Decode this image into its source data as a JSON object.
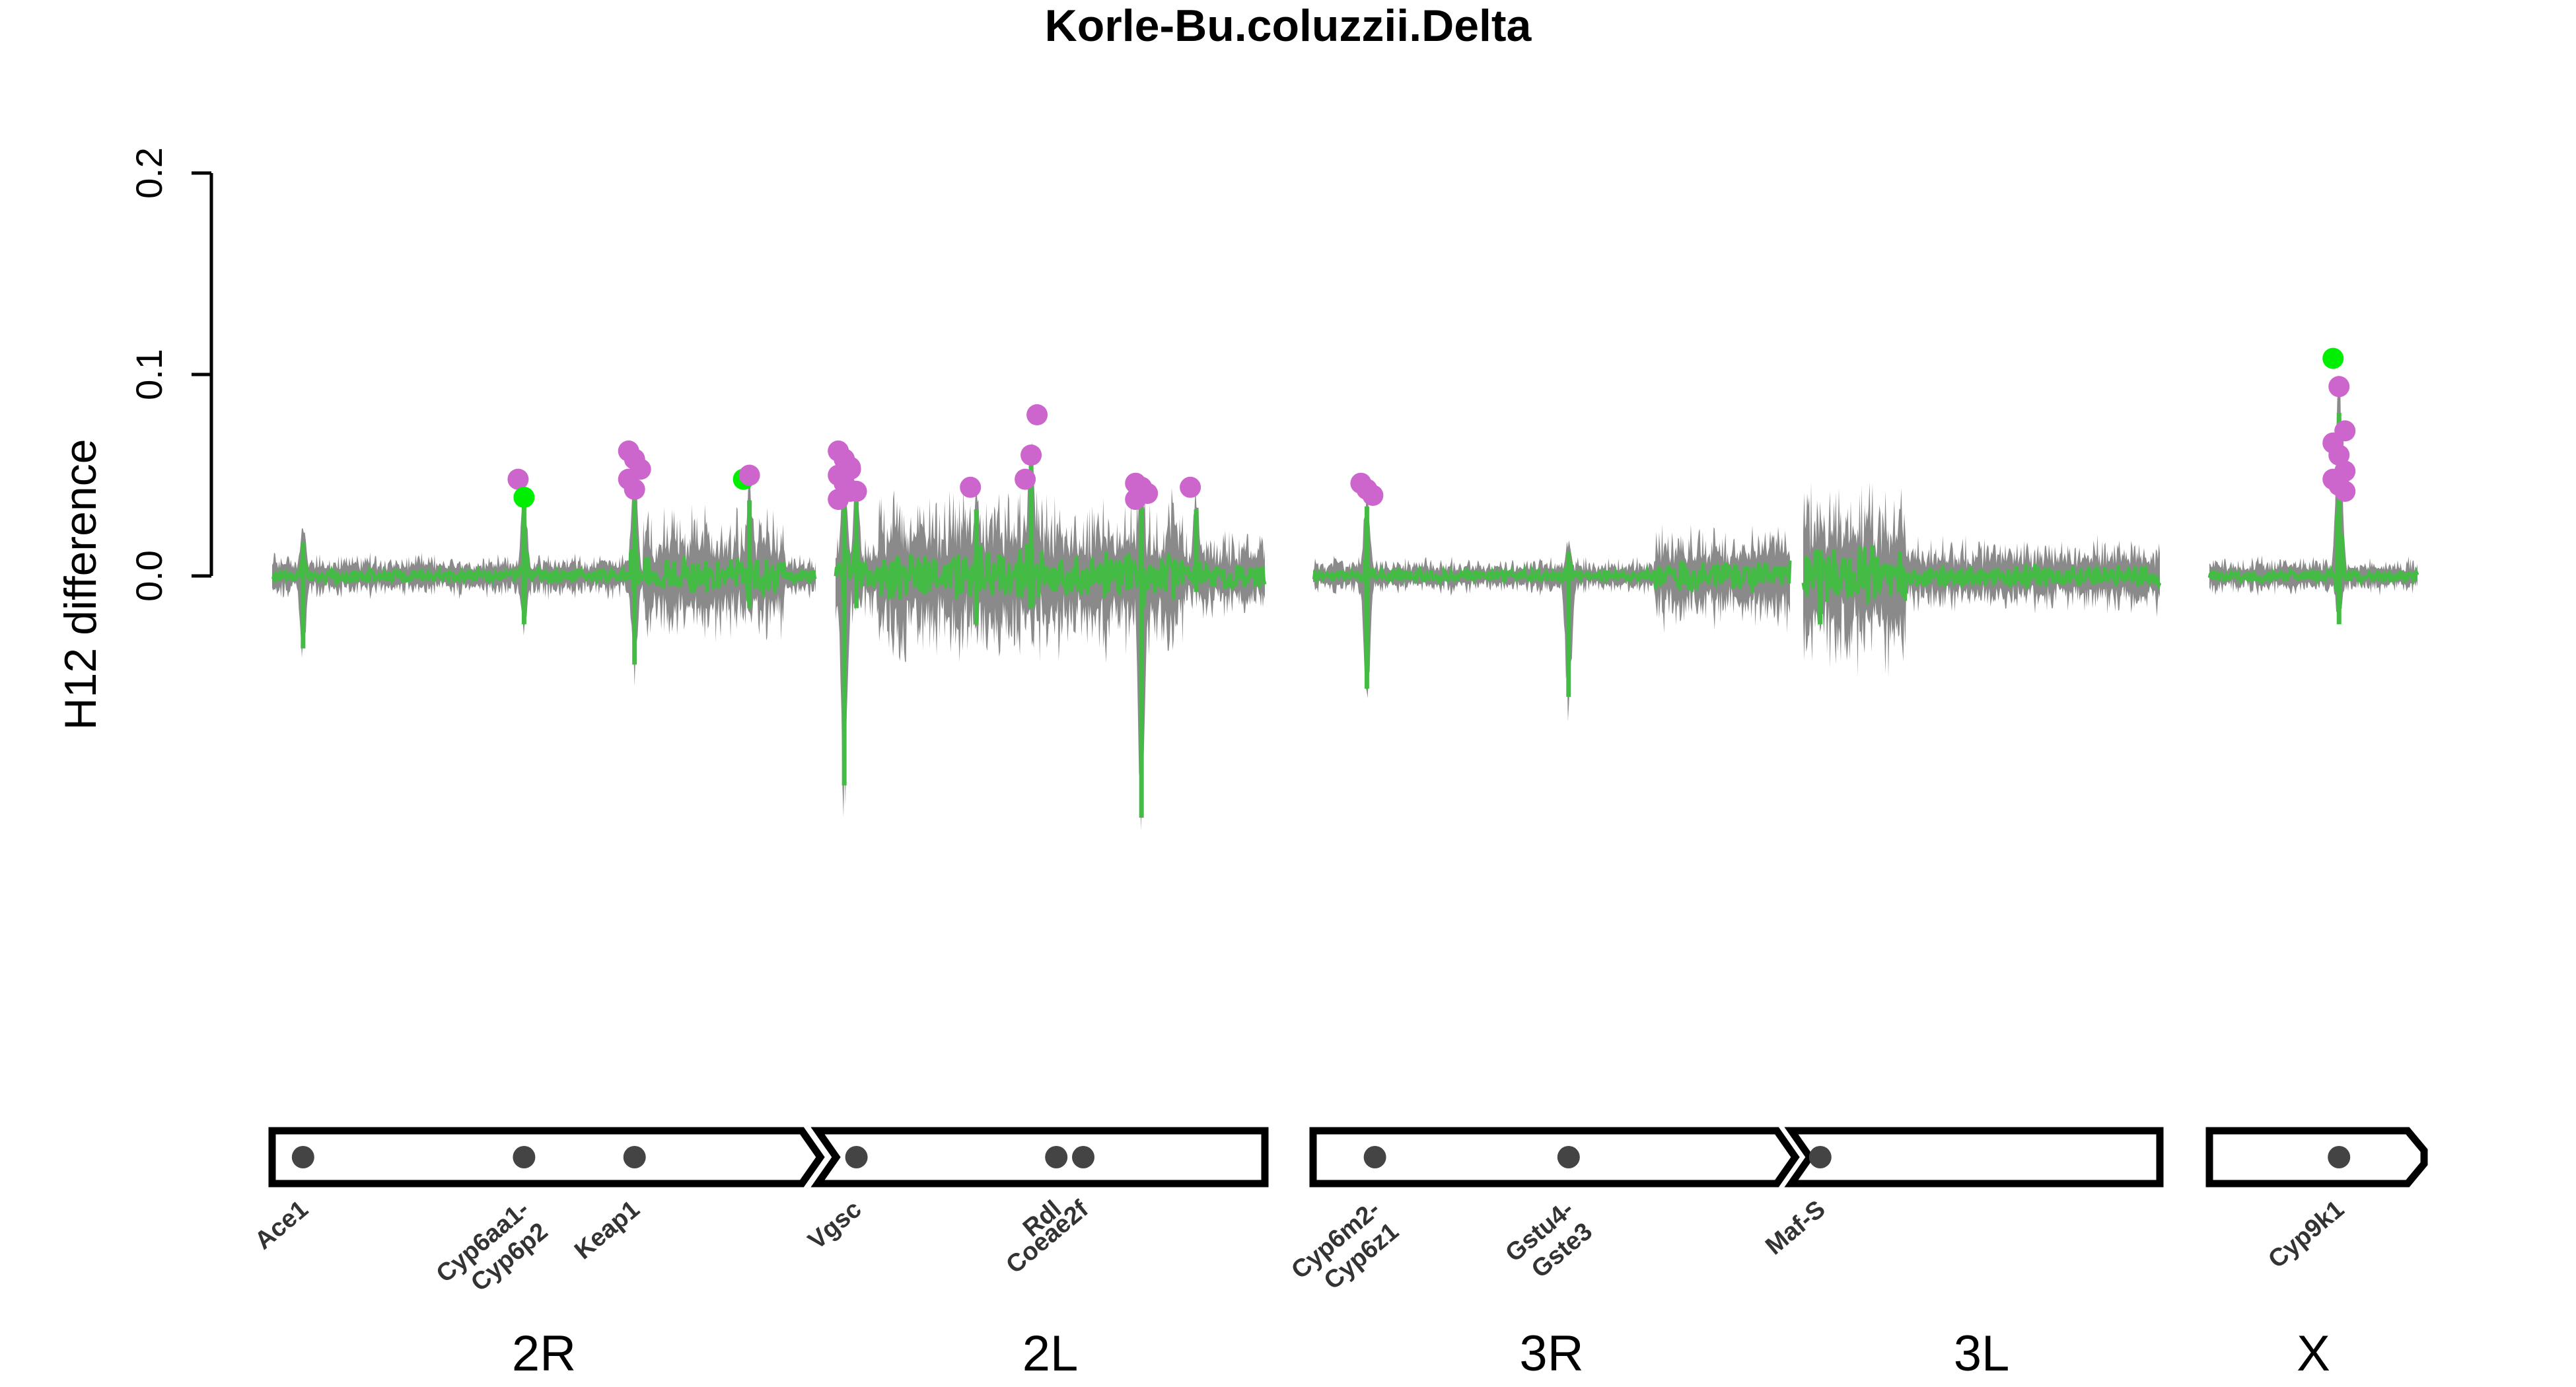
{
  "chart_data": {
    "type": "line",
    "title": "Korle-Bu.coluzzii.Delta",
    "ylabel": "H12 difference",
    "xlabel": "",
    "ylim": [
      -0.24,
      0.24
    ],
    "yticks": [
      0.0,
      0.1,
      0.2
    ],
    "colors": {
      "noise": "#808080",
      "signal": "#44bb44",
      "peak_high": "#00ee00",
      "peak_low": "#cc66cc",
      "gene_dot": "#444444",
      "ideogram": "#000000"
    },
    "series": [
      {
        "role": "permutation-range",
        "values": []
      },
      {
        "role": "observed",
        "values": []
      }
    ],
    "chromosomes": [
      {
        "name": "2R",
        "length_mb": 61.5
      },
      {
        "name": "2L",
        "length_mb": 49.4
      },
      {
        "name": "3R",
        "length_mb": 53.2
      },
      {
        "name": "3L",
        "length_mb": 41.9
      },
      {
        "name": "X",
        "length_mb": 24.4
      }
    ],
    "peaks": [
      {
        "chrom": "2R",
        "pos_mb": 3.5,
        "min": -0.045,
        "max": 0.028
      },
      {
        "chrom": "2R",
        "pos_mb": 28.5,
        "min": -0.03,
        "max": 0.05,
        "points": [
          0.048,
          0.039
        ],
        "high": [
          1
        ]
      },
      {
        "chrom": "2R",
        "pos_mb": 41.0,
        "min": -0.055,
        "max": 0.065,
        "points": [
          0.062,
          0.058,
          0.053,
          0.048,
          0.043
        ]
      },
      {
        "chrom": "2R",
        "pos_mb": 54.0,
        "min": -0.02,
        "max": 0.052,
        "points": [
          0.048,
          0.05
        ],
        "high": [
          0
        ]
      },
      {
        "chrom": "2L",
        "pos_mb": 1.0,
        "min": -0.13,
        "max": 0.065,
        "points": [
          0.062,
          0.058,
          0.054,
          0.05,
          0.046,
          0.042,
          0.038
        ]
      },
      {
        "chrom": "2L",
        "pos_mb": 2.4,
        "min": -0.02,
        "max": 0.055,
        "points": [
          0.053,
          0.042
        ]
      },
      {
        "chrom": "2L",
        "pos_mb": 16.2,
        "min": -0.03,
        "max": 0.048,
        "points": [
          0.044
        ]
      },
      {
        "chrom": "2L",
        "pos_mb": 22.5,
        "min": -0.02,
        "max": 0.08,
        "points": [
          0.048,
          0.06,
          0.08
        ]
      },
      {
        "chrom": "2L",
        "pos_mb": 35.2,
        "min": -0.15,
        "max": 0.048,
        "points": [
          0.046,
          0.044,
          0.041,
          0.038
        ]
      },
      {
        "chrom": "2L",
        "pos_mb": 41.5,
        "min": -0.01,
        "max": 0.046,
        "points": [
          0.044
        ]
      },
      {
        "chrom": "3R",
        "pos_mb": 6.0,
        "min": -0.07,
        "max": 0.048,
        "points": [
          0.046,
          0.043,
          0.04
        ]
      },
      {
        "chrom": "3R",
        "pos_mb": 28.5,
        "min": -0.075,
        "max": 0.02
      },
      {
        "chrom": "3L",
        "pos_mb": 2.0,
        "min": -0.03,
        "max": 0.02
      },
      {
        "chrom": "X",
        "pos_mb": 15.2,
        "min": -0.03,
        "max": 0.11,
        "points": [
          0.108,
          0.094,
          0.072,
          0.066,
          0.06,
          0.052,
          0.048,
          0.045,
          0.042
        ],
        "high": [
          0
        ]
      }
    ],
    "genes": [
      {
        "chrom": "2R",
        "pos_mb": 3.5,
        "label": [
          "Ace1"
        ]
      },
      {
        "chrom": "2R",
        "pos_mb": 28.5,
        "label": [
          "Cyp6aa1-",
          "Cyp6p2"
        ]
      },
      {
        "chrom": "2R",
        "pos_mb": 41.0,
        "label": [
          "Keap1"
        ]
      },
      {
        "chrom": "2L",
        "pos_mb": 2.4,
        "label": [
          "Vgsc"
        ]
      },
      {
        "chrom": "2L",
        "pos_mb": 25.4,
        "label": [
          "Rdl"
        ]
      },
      {
        "chrom": "2L",
        "pos_mb": 28.5,
        "label": [
          "Coeae2f"
        ]
      },
      {
        "chrom": "3R",
        "pos_mb": 6.9,
        "label": [
          "Cyp6m2-",
          "Cyp6z1"
        ]
      },
      {
        "chrom": "3R",
        "pos_mb": 28.5,
        "label": [
          "Gstu4-",
          "Gste3"
        ]
      },
      {
        "chrom": "3L",
        "pos_mb": 2.0,
        "label": [
          "Maf-S"
        ]
      },
      {
        "chrom": "X",
        "pos_mb": 15.2,
        "label": [
          "Cyp9k1"
        ]
      }
    ]
  }
}
